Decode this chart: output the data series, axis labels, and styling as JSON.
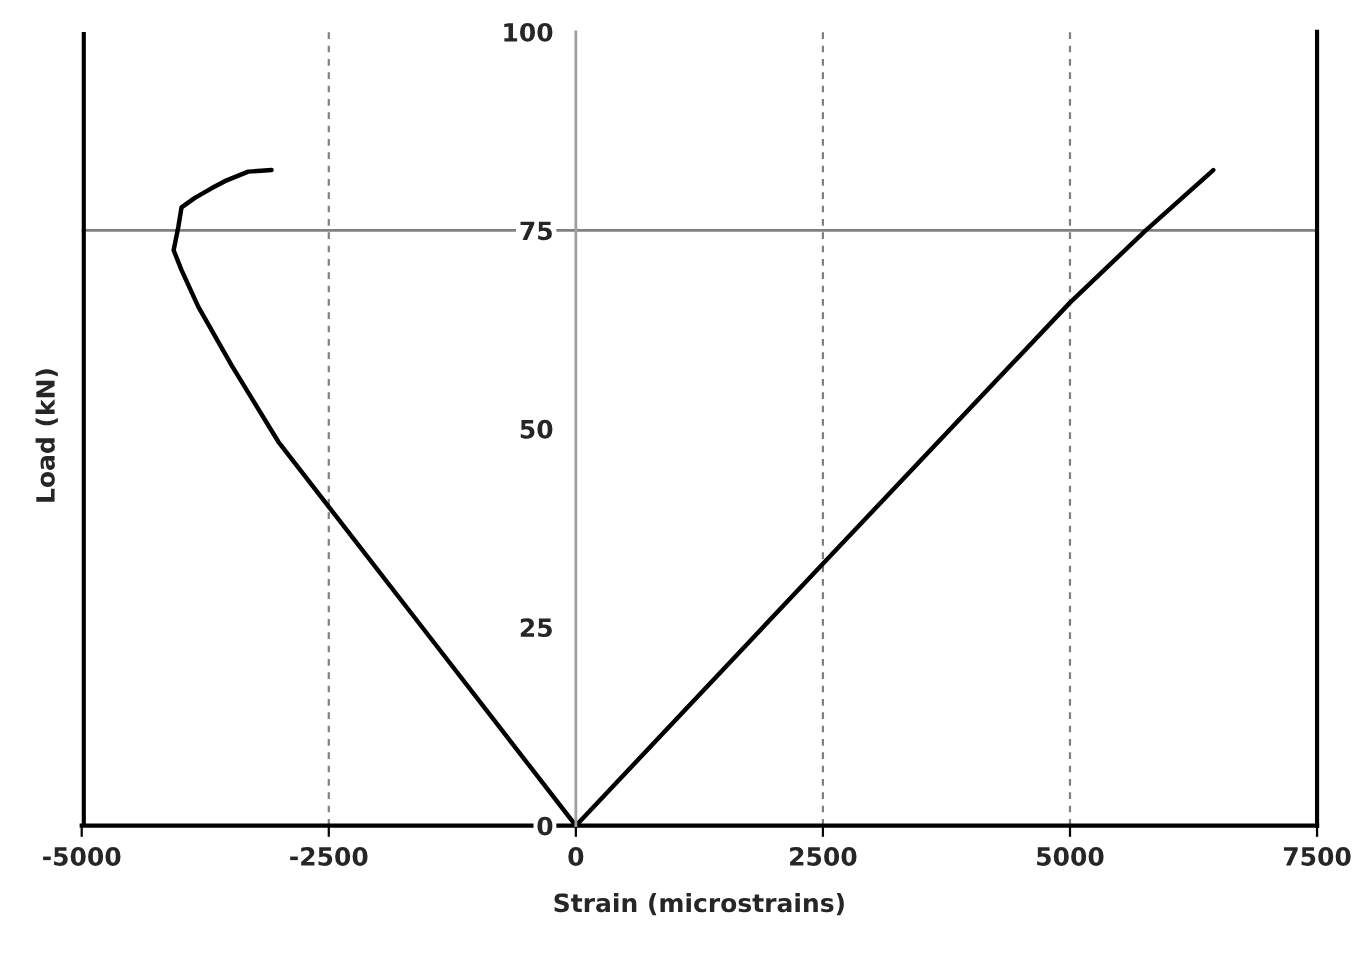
{
  "chart_data": {
    "type": "line",
    "xlabel": "Strain (microstrains)",
    "ylabel": "Load (kN)",
    "xlim": [
      -5000,
      7500
    ],
    "xticks": [
      -5000,
      -2500,
      0,
      2500,
      5000,
      7500
    ],
    "ylim": [
      0,
      100
    ],
    "yticks": [
      0,
      25,
      50,
      75,
      100
    ],
    "grid": "x",
    "marker": "none",
    "line_style": "solid",
    "ref_lines": [
      {
        "axis": "y",
        "value": 75,
        "color": "#808080",
        "line_style": "solid"
      }
    ],
    "series": [
      {
        "color": "#000000",
        "x": [
          0,
          -1555,
          -3012,
          -3483,
          -3821,
          -3990,
          -4070,
          -4023,
          -3990,
          -3855,
          -3687,
          -3552,
          -3315,
          -3079
        ],
        "values": [
          0,
          25,
          48.4,
          58.0,
          65.4,
          70.0,
          72.5,
          75.4,
          77.9,
          79.1,
          80.3,
          81.2,
          82.4,
          82.6
        ]
      },
      {
        "color": "#000000",
        "x": [
          0,
          2500,
          5000,
          5767,
          6450
        ],
        "values": [
          0,
          33,
          65.9,
          75,
          82.6
        ]
      }
    ]
  }
}
